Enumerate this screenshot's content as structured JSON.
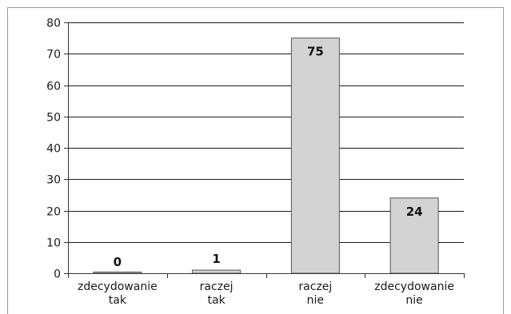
{
  "chart_data": {
    "type": "bar",
    "categories": [
      [
        "zdecydowanie",
        "tak"
      ],
      [
        "raczej",
        "tak"
      ],
      [
        "raczej",
        "nie"
      ],
      [
        "zdecydowanie",
        "nie"
      ]
    ],
    "values": [
      0,
      1,
      75,
      24
    ],
    "data_labels": [
      "0",
      "1",
      "75",
      "24"
    ],
    "yticks": [
      0,
      10,
      20,
      30,
      40,
      50,
      60,
      70,
      80
    ],
    "ylim": [
      0,
      80
    ],
    "grid": true,
    "colors": {
      "bar_fill": "#d3d3d3",
      "bar_stroke": "#555555",
      "axis": "#333333",
      "grid": "#1a1a1a",
      "frame": "#999999"
    }
  }
}
